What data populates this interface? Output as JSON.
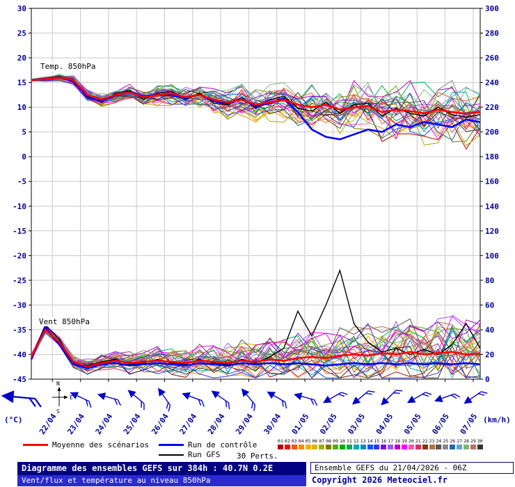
{
  "axes": {
    "left_ticks": [
      30,
      25,
      20,
      15,
      10,
      5,
      0,
      -5,
      -10,
      -15,
      -20,
      -25,
      -30,
      -35,
      -40,
      -45
    ],
    "right_ticks": [
      300,
      280,
      260,
      240,
      220,
      200,
      180,
      160,
      140,
      120,
      100,
      80,
      60,
      40,
      20,
      0
    ],
    "left_unit": "(°C)",
    "right_unit": "(km/h)",
    "x_labels": [
      "22/04",
      "23/04",
      "24/04",
      "25/04",
      "26/04",
      "27/04",
      "28/04",
      "29/04",
      "30/04",
      "01/05",
      "02/05",
      "03/05",
      "04/05",
      "05/05",
      "06/05",
      "07/05"
    ]
  },
  "barbs": {
    "color": "#0000cc",
    "angles": [
      185,
      205,
      195,
      220,
      235,
      200,
      215,
      230,
      210,
      195,
      150,
      140,
      135,
      150,
      160,
      145
    ],
    "compass": {
      "n": "N",
      "e": "E",
      "s": "S"
    }
  },
  "legend": {
    "mean_label": "Moyenne des scénarios",
    "control_label": "Run de contrôle",
    "gfs_label": "Run GFS",
    "perts_label": "30 Perts.",
    "mean_color": "#ff0000",
    "control_color": "#0000ff",
    "gfs_color": "#000000",
    "perts": {
      "numbers": [
        "01",
        "02",
        "03",
        "04",
        "05",
        "06",
        "07",
        "08",
        "09",
        "10",
        "11",
        "12",
        "13",
        "14",
        "15",
        "16",
        "17",
        "18",
        "19",
        "20",
        "21",
        "22",
        "23",
        "24",
        "25",
        "26",
        "27",
        "28",
        "29",
        "30"
      ],
      "colors": [
        "#b00000",
        "#ff0000",
        "#ff5500",
        "#ff8800",
        "#ffaa00",
        "#d4b800",
        "#aaaa00",
        "#7a7a00",
        "#55aa00",
        "#00aa00",
        "#00aa55",
        "#00aaaa",
        "#0088cc",
        "#0055ff",
        "#3333ff",
        "#7700ff",
        "#9955ff",
        "#bb00bb",
        "#ff00ff",
        "#ff55aa",
        "#cc3366",
        "#883300",
        "#aa7744",
        "#555555",
        "#888888",
        "#2266aa",
        "#55aacc",
        "#77bb77",
        "#cc6666",
        "#333333"
      ]
    }
  },
  "footer": {
    "title": "Diagramme des ensembles GEFS sur 384h : 40.7N 0.2E",
    "subtitle": "Vent/flux et température au niveau 850hPa",
    "run_info": "Ensemble GEFS du 21/04/2026 - 06Z",
    "copyright": "Copyright 2026 Meteociel.fr"
  },
  "chart_data": [
    {
      "type": "line",
      "title": "Temp. 850hPa",
      "ylabel": "°C",
      "ylim": [
        -45,
        30
      ],
      "x_hours_step": 12,
      "x_hours_max": 384,
      "grid": true,
      "legend_position": "bottom",
      "series": [
        {
          "name": "Moyenne des scénarios",
          "color": "#ff0000",
          "width": 2.6,
          "values": [
            15.5,
            15.7,
            16.0,
            15.5,
            12.5,
            11.5,
            12.5,
            13.0,
            12.0,
            12.5,
            12.8,
            12.0,
            12.5,
            11.5,
            11.0,
            11.5,
            10.5,
            11.0,
            11.5,
            10.5,
            10.0,
            10.5,
            9.5,
            10.0,
            10.2,
            9.0,
            9.5,
            9.2,
            8.8,
            9.5,
            9.0,
            8.7,
            9.0
          ]
        },
        {
          "name": "Run de contrôle",
          "color": "#0000ff",
          "width": 2.6,
          "values": [
            15.5,
            15.8,
            16.0,
            15.3,
            12.0,
            11.2,
            12.4,
            13.1,
            12.2,
            12.6,
            12.4,
            11.8,
            12.6,
            11.2,
            10.8,
            11.6,
            10.2,
            10.8,
            11.8,
            9.0,
            5.5,
            4.0,
            3.5,
            4.5,
            5.5,
            5.0,
            6.5,
            6.0,
            7.0,
            6.5,
            6.0,
            7.5,
            7.0
          ]
        },
        {
          "name": "Run GFS",
          "color": "#000000",
          "width": 1.4,
          "values": [
            15.5,
            15.6,
            16.2,
            15.0,
            12.2,
            11.0,
            12.8,
            13.4,
            11.6,
            12.9,
            13.2,
            11.5,
            12.9,
            10.8,
            10.5,
            12.0,
            9.8,
            11.5,
            12.2,
            9.8,
            9.2,
            11.0,
            8.8,
            10.5,
            10.8,
            8.2,
            9.8,
            8.8,
            8.2,
            10.0,
            8.5,
            8.0,
            8.5
          ]
        }
      ],
      "ensemble": {
        "members": 30,
        "seed": 11,
        "spread_start": 0.15,
        "spread_end": 4.5
      }
    },
    {
      "type": "line",
      "title": "Vent 850hPa",
      "ylabel": "km/h",
      "ylim": [
        0,
        300
      ],
      "x_hours_step": 12,
      "x_hours_max": 384,
      "grid": true,
      "legend_position": "bottom",
      "series": [
        {
          "name": "Moyenne des scénarios",
          "color": "#ff0000",
          "width": 2.6,
          "values": [
            18,
            40,
            30,
            14,
            10,
            13,
            15,
            13,
            14,
            15,
            14,
            13,
            15,
            14,
            13,
            15,
            14,
            16,
            15,
            17,
            18,
            17,
            19,
            20,
            19,
            21,
            20,
            22,
            20,
            21,
            22,
            20,
            21
          ]
        },
        {
          "name": "Run de contrôle",
          "color": "#0000ff",
          "width": 2.6,
          "values": [
            16,
            42,
            28,
            12,
            9,
            12,
            13,
            11,
            12,
            13,
            12,
            11,
            13,
            12,
            11,
            13,
            12,
            13,
            12,
            13,
            12,
            11,
            12,
            13,
            12,
            13,
            12,
            13,
            12,
            13,
            12,
            13,
            12
          ]
        },
        {
          "name": "Run GFS",
          "color": "#000000",
          "width": 1.4,
          "values": [
            17,
            44,
            32,
            13,
            11,
            14,
            16,
            12,
            13,
            16,
            13,
            12,
            16,
            13,
            12,
            16,
            13,
            18,
            25,
            55,
            35,
            60,
            88,
            45,
            30,
            22,
            25,
            20,
            24,
            20,
            28,
            45,
            25
          ]
        }
      ],
      "ensemble": {
        "members": 30,
        "seed": 23,
        "spread_start": 1.5,
        "spread_end": 20,
        "clamp_min": 1
      }
    }
  ]
}
